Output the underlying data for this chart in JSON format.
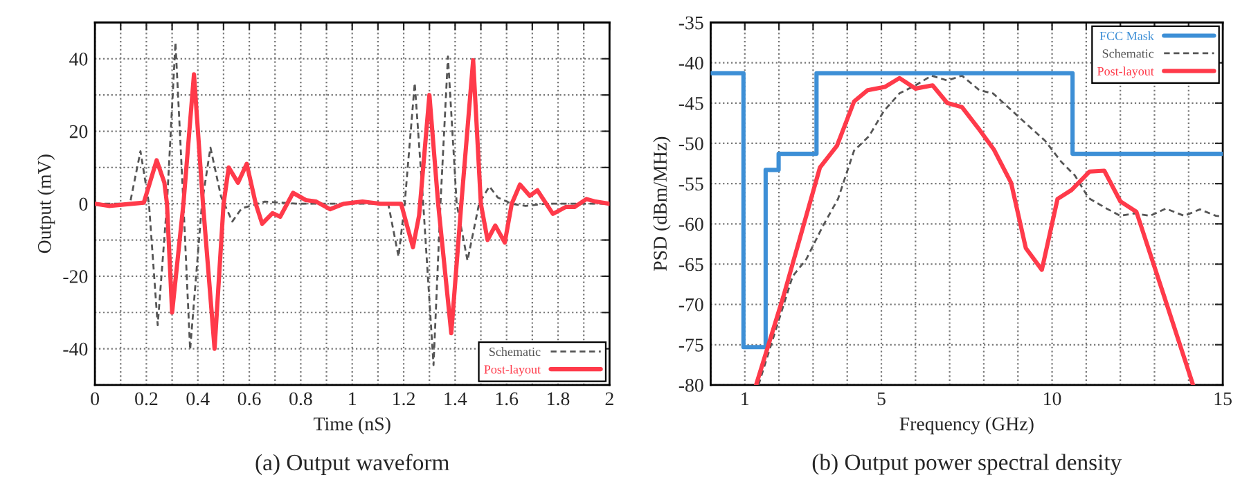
{
  "chart_data": [
    {
      "type": "line",
      "xlabel": "Time (nS)",
      "ylabel": "Output (mV)",
      "annotations": [
        "(a) Output waveform"
      ],
      "xlim": [
        0,
        2
      ],
      "ylim": [
        -50,
        50
      ],
      "xticks": [
        0,
        {
          "value": 0.1,
          "label": null
        },
        0.2,
        {
          "value": 0.3,
          "label": null
        },
        0.4,
        {
          "value": 0.5,
          "label": null
        },
        0.6,
        {
          "value": 0.7,
          "label": null
        },
        0.8,
        {
          "value": 0.9,
          "label": null
        },
        1,
        {
          "value": 1.1,
          "label": null
        },
        1.2,
        {
          "value": 1.3,
          "label": null
        },
        1.4,
        {
          "value": 1.5,
          "label": null
        },
        1.6,
        {
          "value": 1.7,
          "label": null
        },
        1.8,
        {
          "value": 1.9,
          "label": null
        },
        2
      ],
      "yticks": [
        {
          "value": -50,
          "label": null
        },
        -40,
        {
          "value": -30,
          "label": null
        },
        -20,
        {
          "value": -10,
          "label": null
        },
        0,
        {
          "value": 10,
          "label": null
        },
        20,
        {
          "value": 30,
          "label": null
        },
        40,
        {
          "value": 50,
          "label": null
        }
      ],
      "grid": true,
      "legend": "bottom right",
      "series": [
        {
          "name": "Schematic",
          "color": "#555555",
          "line_style": "dashed",
          "x": [
            0,
            0.136,
            0.177,
            0.21,
            0.244,
            0.28,
            0.313,
            0.344,
            0.37,
            0.416,
            0.449,
            0.49,
            0.534,
            0.57,
            0.66,
            0.787,
            1.14,
            1.18,
            1.204,
            1.243,
            1.276,
            1.316,
            1.343,
            1.372,
            1.406,
            1.448,
            1.493,
            1.533,
            1.566,
            1.62,
            1.674,
            1.75,
            2
          ],
          "values": [
            0,
            0,
            14.5,
            0,
            -33.5,
            0,
            44.5,
            0,
            -40.3,
            0,
            15.5,
            2,
            -4.9,
            -1.3,
            0.6,
            0,
            0,
            -14.6,
            0,
            33.3,
            0,
            -44.5,
            0,
            40.6,
            0,
            -15.7,
            0,
            4.8,
            1.7,
            0,
            -0.6,
            0,
            0
          ]
        },
        {
          "name": "Post-layout",
          "color": "#ff3a4a",
          "line_style": "solid",
          "x": [
            0,
            0.054,
            0.19,
            0.24,
            0.27,
            0.28,
            0.3,
            0.344,
            0.385,
            0.42,
            0.465,
            0.5,
            0.52,
            0.556,
            0.59,
            0.625,
            0.65,
            0.69,
            0.72,
            0.77,
            0.82,
            0.86,
            0.914,
            0.968,
            1.04,
            1.11,
            1.19,
            1.236,
            1.26,
            1.3,
            1.334,
            1.385,
            1.424,
            1.47,
            1.5,
            1.526,
            1.556,
            1.593,
            1.62,
            1.652,
            1.69,
            1.72,
            1.78,
            1.83,
            1.864,
            1.91,
            1.946,
            2
          ],
          "values": [
            0,
            -0.6,
            0.3,
            12,
            5.8,
            0,
            -30,
            0,
            35.7,
            0,
            -40,
            0,
            10,
            5.8,
            11,
            0,
            -5.5,
            -2.6,
            -3.6,
            3,
            1,
            0.6,
            -1.5,
            0,
            0.6,
            0,
            0,
            -12,
            -3.2,
            30,
            0,
            -35.7,
            0,
            39.6,
            0,
            -10,
            -6,
            -10.7,
            0,
            5.3,
            2.2,
            3.7,
            -2.8,
            -0.9,
            -0.9,
            1.3,
            0.6,
            0
          ]
        }
      ]
    },
    {
      "type": "line",
      "xlabel": "Frequency (GHz)",
      "ylabel": "PSD (dBm/MHz)",
      "annotations": [
        "(b) Output power spectral density"
      ],
      "xlim": [
        0,
        15
      ],
      "ylim": [
        -80,
        -35
      ],
      "xticks": [
        {
          "value": 0,
          "label": null
        },
        1,
        {
          "value": 2,
          "label": null
        },
        {
          "value": 3,
          "label": null
        },
        {
          "value": 4,
          "label": null
        },
        5,
        {
          "value": 6,
          "label": null
        },
        {
          "value": 7,
          "label": null
        },
        {
          "value": 8,
          "label": null
        },
        {
          "value": 9,
          "label": null
        },
        10,
        {
          "value": 11,
          "label": null
        },
        {
          "value": 12,
          "label": null
        },
        {
          "value": 13,
          "label": null
        },
        {
          "value": 14,
          "label": null
        },
        15
      ],
      "yticks": [
        -80,
        -75,
        -70,
        -65,
        -60,
        -55,
        -50,
        -45,
        -40,
        -35
      ],
      "grid": true,
      "legend": "top right",
      "series": [
        {
          "name": "FCC Mask",
          "color": "#3d8fd6",
          "line_style": "solid",
          "x": [
            0,
            0.96,
            0.96,
            1.61,
            1.61,
            1.99,
            1.99,
            3.1,
            3.1,
            10.6,
            10.6,
            15
          ],
          "values": [
            -41.3,
            -41.3,
            -75.3,
            -75.3,
            -53.3,
            -53.3,
            -51.3,
            -51.3,
            -41.3,
            -41.3,
            -51.3,
            -51.3
          ]
        },
        {
          "name": "Schematic",
          "color": "#555555",
          "line_style": "dashed",
          "x": [
            1.4,
            2.4,
            2.8,
            3.27,
            3.73,
            4.2,
            4.64,
            5.07,
            5.53,
            6.0,
            6.47,
            6.93,
            7.36,
            7.87,
            8.27,
            9.2,
            9.8,
            10.27,
            10.67,
            11.07,
            11.6,
            12.0,
            12.4,
            12.87,
            13.33,
            13.87,
            14.33,
            14.8,
            15
          ],
          "values": [
            -80,
            -66.5,
            -64.4,
            -60.4,
            -56.9,
            -50.9,
            -49.1,
            -46,
            -43.8,
            -42.8,
            -41.6,
            -42.2,
            -41.6,
            -43.4,
            -43.8,
            -47.4,
            -49.7,
            -52.3,
            -54,
            -56.8,
            -58.1,
            -59,
            -58.7,
            -59,
            -58.1,
            -59,
            -58.2,
            -59,
            -59.1
          ]
        },
        {
          "name": "Post-layout",
          "color": "#ff3a4a",
          "line_style": "solid",
          "x": [
            1.33,
            2.13,
            3.2,
            3.7,
            4.2,
            4.6,
            5.1,
            5.53,
            6.0,
            6.5,
            6.93,
            7.36,
            7.87,
            8.3,
            8.8,
            9.23,
            9.7,
            10.16,
            10.57,
            11.1,
            11.53,
            12.0,
            12.47,
            13.33,
            14.13
          ],
          "values": [
            -80,
            -69,
            -53,
            -50.3,
            -44.8,
            -43.4,
            -43,
            -41.9,
            -43.2,
            -42.8,
            -45,
            -45.5,
            -48.3,
            -50.8,
            -54.9,
            -63,
            -65.7,
            -56.9,
            -55.8,
            -53.5,
            -53.4,
            -57.2,
            -58.5,
            -69.6,
            -80
          ]
        }
      ]
    }
  ]
}
